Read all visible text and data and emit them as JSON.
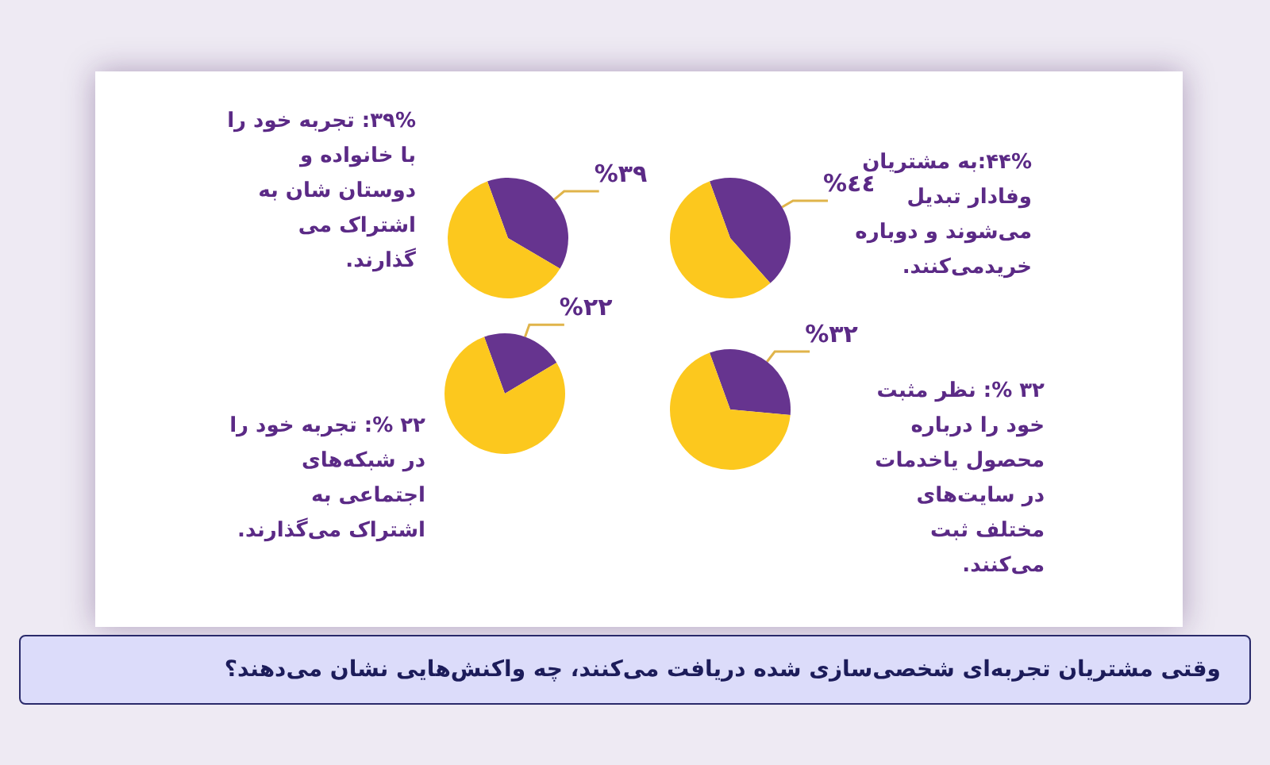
{
  "chart_data": [
    {
      "type": "pie",
      "title": "وقتی مشتریان تجربه‌ای شخصی‌سازی شده دریافت می‌کنند، چه واکنش‌هایی نشان می‌دهند؟",
      "categories": [
        null,
        null
      ],
      "values": [
        44,
        56
      ],
      "colors": [
        "#66348f",
        "#fcc81e"
      ],
      "value_labels": [
        "%٤٤",
        null
      ],
      "annotations": [
        "۴۴%:به مشتریان وفادار تبدیل می‌شوند و دوباره خرید‌می‌کنند."
      ]
    },
    {
      "type": "pie",
      "categories": [
        null,
        null
      ],
      "values": [
        39,
        61
      ],
      "colors": [
        "#66348f",
        "#fcc81e"
      ],
      "value_labels": [
        "%۳۹",
        null
      ],
      "annotations": [
        "۳۹%: تجربه خود را با خانواده و دوستان شان به اشتراک می گذارند."
      ]
    },
    {
      "type": "pie",
      "categories": [
        null,
        null
      ],
      "values": [
        32,
        68
      ],
      "colors": [
        "#66348f",
        "#fcc81e"
      ],
      "value_labels": [
        "%۳۲",
        null
      ],
      "annotations": [
        "۳۲ %: نظر مثبت خود را درباره محصول یاخدمات در سایت‌های مختلف ثبت می‌کنند."
      ]
    },
    {
      "type": "pie",
      "categories": [
        null,
        null
      ],
      "values": [
        22,
        78
      ],
      "colors": [
        "#66348f",
        "#fcc81e"
      ],
      "value_labels": [
        "%۲۲",
        null
      ],
      "annotations": [
        "۲۲ %: تجربه خود را در شبکه‌های اجتماعی به اشتراک می‌گذارند."
      ]
    }
  ]
}
